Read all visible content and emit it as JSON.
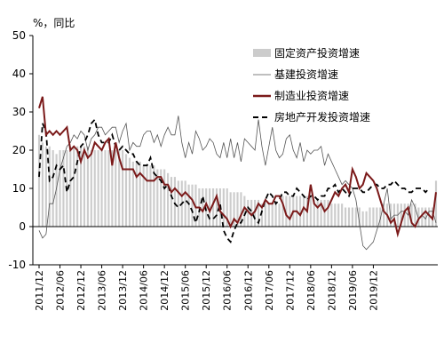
{
  "chart_data": {
    "type": "line",
    "unit_label": "%，同比",
    "ylim": [
      -10,
      50
    ],
    "y_ticks": [
      -10,
      0,
      10,
      20,
      30,
      40,
      50
    ],
    "x_tick_labels": [
      "2011/12",
      "2012/06",
      "2012/12",
      "2013/06",
      "2013/12",
      "2014/06",
      "2014/12",
      "2015/06",
      "2015/12",
      "2016/06",
      "2016/12",
      "2017/06",
      "2017/12",
      "2018/06",
      "2018/12",
      "2019/06",
      "2019/12"
    ],
    "start_month": "2011/12",
    "legend_position": "top-right",
    "colors": {
      "fixed": "#cccccc",
      "infra": "#555555",
      "manufacturing": "#7b1a1a",
      "realestate": "#000000"
    },
    "series": [
      {
        "name": "固定资产投资增速",
        "style": "bar",
        "values": [
          24,
          22,
          21,
          21,
          20,
          19,
          20,
          20,
          20,
          21,
          21,
          21,
          21,
          21,
          21,
          20,
          20,
          20,
          20,
          20,
          20,
          20,
          20,
          20,
          20,
          19,
          18,
          17,
          17,
          17,
          16,
          16,
          16,
          16,
          15,
          15,
          15,
          14,
          13,
          13,
          12,
          12,
          12,
          11,
          11,
          11,
          10,
          10,
          10,
          10,
          10,
          10,
          10,
          10,
          10,
          9,
          9,
          9,
          9,
          8,
          7,
          7,
          7,
          7,
          6,
          6,
          6,
          6,
          6,
          6,
          8,
          8,
          8,
          8,
          8,
          8,
          8,
          8,
          8,
          7,
          7,
          7,
          7,
          7,
          6,
          6,
          6,
          6,
          5,
          5,
          5,
          5,
          5,
          4,
          4,
          5,
          5,
          5,
          5,
          6,
          6,
          6,
          6,
          6,
          6,
          6,
          6,
          6,
          6,
          5,
          5,
          5,
          5,
          5,
          12
        ]
      },
      {
        "name": "基建投资增速",
        "style": "thin-line",
        "values": [
          -1,
          -3,
          -2,
          6,
          6,
          10,
          15,
          18,
          21,
          22,
          24,
          23,
          25,
          24,
          20,
          23,
          24,
          26,
          26,
          24,
          25,
          26,
          26,
          22,
          25,
          27,
          20,
          22,
          21,
          21,
          24,
          25,
          25,
          22,
          24,
          21,
          24,
          26,
          24,
          24,
          29,
          22,
          18,
          22,
          19,
          25,
          23,
          20,
          21,
          23,
          22,
          19,
          18,
          22,
          18,
          23,
          18,
          22,
          17,
          23,
          22,
          21,
          20,
          28,
          21,
          16,
          21,
          26,
          20,
          18,
          19,
          23,
          24,
          20,
          18,
          22,
          17,
          20,
          19,
          20,
          20,
          21,
          16,
          19,
          17,
          15,
          13,
          11,
          12,
          11,
          10,
          7,
          1,
          -5,
          -6,
          -5,
          -4,
          -1,
          2,
          6,
          10,
          2,
          3,
          3,
          4,
          4,
          3,
          7,
          5,
          2,
          3,
          2,
          4,
          4,
          1
        ]
      },
      {
        "name": "制造业投资增速",
        "style": "thick-line",
        "values": [
          31,
          34,
          24,
          25,
          24,
          25,
          24,
          25,
          26,
          20,
          21,
          20,
          17,
          20,
          18,
          19,
          22,
          21,
          20,
          22,
          23,
          16,
          22,
          18,
          15,
          15,
          15,
          15,
          13,
          14,
          13,
          12,
          12,
          12,
          13,
          13,
          11,
          11,
          9,
          10,
          9,
          8,
          9,
          8,
          7,
          5,
          5,
          4,
          6,
          4,
          6,
          8,
          4,
          3,
          2,
          0,
          2,
          1,
          3,
          5,
          4,
          3,
          4,
          6,
          5,
          7,
          6,
          6,
          8,
          8,
          6,
          3,
          2,
          4,
          4,
          3,
          5,
          4,
          11,
          6,
          5,
          6,
          4,
          5,
          7,
          9,
          8,
          10,
          11,
          9,
          15,
          13,
          10,
          11,
          14,
          13,
          12,
          10,
          7,
          4,
          3,
          1,
          2,
          -2,
          1,
          4,
          5,
          1,
          0,
          2,
          3,
          4,
          3,
          2,
          9
        ]
      },
      {
        "name": "房地产开发投资增速",
        "style": "dashed-line",
        "values": [
          13,
          27,
          25,
          12,
          13,
          16,
          15,
          16,
          9,
          12,
          13,
          17,
          21,
          22,
          24,
          27,
          28,
          24,
          22,
          22,
          22,
          24,
          21,
          20,
          21,
          20,
          19,
          19,
          17,
          16,
          16,
          16,
          18,
          14,
          13,
          12,
          10,
          11,
          8,
          6,
          5,
          6,
          7,
          6,
          4,
          1,
          4,
          8,
          4,
          2,
          2,
          3,
          6,
          -1,
          -3,
          -4,
          -1,
          1,
          1,
          3,
          5,
          4,
          2,
          1,
          4,
          7,
          9,
          8,
          6,
          7,
          9,
          9,
          8,
          8,
          10,
          9,
          8,
          7,
          8,
          8,
          7,
          8,
          8,
          10,
          10,
          11,
          9,
          10,
          9,
          8,
          10,
          10,
          10,
          9,
          9,
          10,
          11,
          11,
          10,
          10,
          11,
          11,
          12,
          11,
          10,
          10,
          9,
          9,
          10,
          10,
          10,
          9,
          10
        ]
      }
    ]
  }
}
